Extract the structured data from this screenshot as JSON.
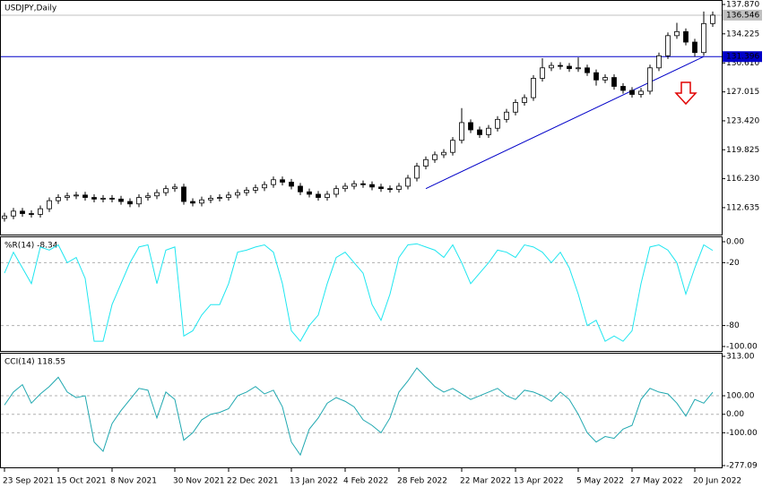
{
  "chart_data": [
    {
      "type": "candlestick",
      "title": "USDJPY,Daily",
      "categories": [
        "23 Sep 2021",
        null,
        null,
        null,
        null,
        null,
        "15 Oct 2021",
        null,
        null,
        null,
        null,
        null,
        "8 Nov 2021",
        null,
        null,
        null,
        null,
        null,
        null,
        "30 Nov 2021",
        null,
        null,
        null,
        null,
        null,
        "22 Dec 2021",
        null,
        null,
        null,
        null,
        null,
        null,
        "13 Jan 2022",
        null,
        null,
        null,
        null,
        null,
        "4 Feb 2022",
        null,
        null,
        null,
        null,
        null,
        "28 Feb 2022",
        null,
        null,
        null,
        null,
        null,
        null,
        "22 Mar 2022",
        null,
        null,
        null,
        null,
        null,
        "13 Apr 2022",
        null,
        null,
        null,
        null,
        null,
        null,
        "5 May 2022",
        null,
        null,
        null,
        null,
        null,
        "27 May 2022",
        null,
        null,
        null,
        null,
        null,
        null,
        "20 Jun 2022",
        null,
        null
      ],
      "open": [
        111.3,
        111.6,
        112.2,
        111.9,
        111.8,
        112.5,
        113.5,
        113.9,
        114.1,
        114.2,
        113.9,
        113.7,
        113.8,
        113.7,
        113.4,
        113.1,
        113.9,
        114.1,
        114.5,
        115.0,
        115.2,
        113.4,
        113.2,
        113.6,
        113.8,
        113.9,
        114.2,
        114.5,
        114.8,
        115.1,
        115.5,
        116.1,
        115.8,
        115.3,
        114.6,
        114.3,
        113.9,
        114.3,
        115.0,
        115.3,
        115.6,
        115.5,
        115.2,
        115.0,
        114.9,
        115.3,
        116.3,
        117.8,
        118.6,
        119.2,
        119.5,
        121.0,
        123.2,
        122.3,
        121.7,
        122.5,
        123.6,
        124.5,
        125.7,
        126.3,
        128.7,
        130.0,
        130.3,
        130.2,
        129.9,
        130.0,
        129.4,
        128.5,
        128.8,
        127.7,
        127.2,
        126.7,
        127.1,
        130.0,
        131.5,
        134.0,
        134.5,
        133.2,
        131.9,
        135.5
      ],
      "high": [
        112.0,
        112.6,
        112.6,
        112.3,
        112.9,
        113.9,
        114.3,
        114.5,
        114.6,
        114.6,
        114.3,
        114.2,
        114.2,
        114.1,
        113.8,
        114.3,
        114.5,
        114.9,
        115.4,
        115.6,
        115.6,
        113.8,
        114.0,
        114.2,
        114.3,
        114.6,
        114.9,
        115.2,
        115.5,
        115.9,
        116.5,
        116.5,
        116.2,
        115.7,
        115.0,
        114.7,
        114.7,
        115.4,
        115.7,
        116.0,
        116.0,
        115.9,
        115.6,
        115.4,
        115.7,
        116.7,
        118.2,
        119.0,
        119.6,
        119.9,
        121.4,
        125.0,
        123.6,
        122.7,
        122.9,
        124.0,
        124.9,
        126.1,
        126.7,
        129.1,
        131.2,
        130.7,
        130.7,
        130.6,
        131.3,
        130.4,
        129.8,
        129.2,
        129.2,
        128.1,
        127.6,
        127.5,
        130.4,
        131.9,
        134.4,
        135.6,
        134.9,
        133.6,
        137.0,
        137.0
      ],
      "low": [
        110.9,
        111.2,
        111.5,
        111.4,
        111.4,
        112.1,
        113.1,
        113.5,
        113.7,
        113.5,
        113.3,
        113.3,
        113.3,
        113.0,
        112.7,
        112.7,
        113.5,
        113.7,
        114.1,
        114.6,
        113.0,
        112.8,
        112.8,
        113.2,
        113.4,
        113.5,
        113.8,
        114.1,
        114.4,
        114.7,
        115.1,
        115.4,
        114.9,
        114.2,
        113.9,
        113.5,
        113.5,
        113.9,
        114.6,
        114.9,
        115.1,
        114.8,
        114.6,
        114.5,
        114.5,
        114.9,
        115.9,
        117.4,
        118.2,
        118.8,
        119.1,
        120.6,
        121.9,
        121.3,
        121.3,
        122.1,
        123.2,
        124.1,
        125.3,
        125.9,
        128.3,
        129.6,
        129.8,
        129.5,
        129.5,
        129.0,
        127.8,
        128.1,
        127.3,
        126.8,
        126.3,
        126.3,
        126.7,
        129.6,
        131.1,
        133.6,
        132.8,
        131.4,
        131.5,
        135.1
      ],
      "close": [
        111.6,
        112.2,
        111.9,
        111.8,
        112.5,
        113.5,
        113.9,
        114.1,
        114.2,
        113.9,
        113.7,
        113.8,
        113.7,
        113.4,
        113.1,
        113.9,
        114.1,
        114.5,
        115.0,
        115.2,
        113.4,
        113.2,
        113.6,
        113.8,
        113.9,
        114.2,
        114.5,
        114.8,
        115.1,
        115.5,
        116.1,
        115.8,
        115.3,
        114.6,
        114.3,
        113.9,
        114.3,
        115.0,
        115.3,
        115.6,
        115.5,
        115.2,
        115.0,
        114.9,
        115.3,
        116.3,
        117.8,
        118.6,
        119.2,
        119.5,
        121.0,
        123.2,
        122.3,
        121.7,
        122.5,
        123.6,
        124.5,
        125.7,
        126.3,
        128.7,
        130.0,
        130.3,
        130.2,
        129.9,
        130.0,
        129.4,
        128.5,
        128.8,
        127.7,
        127.2,
        126.7,
        127.1,
        130.0,
        131.5,
        134.0,
        134.5,
        133.2,
        131.9,
        135.5,
        136.546
      ],
      "up_color": "#ffffff",
      "down_color": "#000000",
      "ylim": [
        109.29,
        138.43
      ],
      "yticks": [
        {
          "value": 137.87,
          "label": "137.870"
        },
        {
          "value": 134.225,
          "label": "134.225"
        },
        {
          "value": 130.61,
          "label": "130.610"
        },
        {
          "value": 127.015,
          "label": "127.015"
        },
        {
          "value": 123.42,
          "label": "123.420"
        },
        {
          "value": 119.825,
          "label": "119.825"
        },
        {
          "value": 116.23,
          "label": "116.230"
        },
        {
          "value": 112.635,
          "label": "112.635"
        }
      ],
      "price_lines": [
        {
          "value": 136.546,
          "color": "#c0c0c0"
        },
        {
          "value": 131.396,
          "color": "#0000c8"
        }
      ],
      "trendline": {
        "x": [
          47,
          78
        ],
        "y": [
          115.0,
          131.4
        ],
        "color": "#0000c8"
      }
    },
    {
      "type": "line",
      "title": "%R(14) -8.34",
      "values": [
        -30,
        -10,
        -25,
        -40,
        -5,
        -8,
        -3,
        -20,
        -15,
        -35,
        -95,
        -95,
        -60,
        -40,
        -20,
        -5,
        -3,
        -40,
        -8,
        -5,
        -90,
        -85,
        -70,
        -60,
        -60,
        -40,
        -10,
        -8,
        -5,
        -3,
        -10,
        -40,
        -85,
        -95,
        -80,
        -70,
        -40,
        -15,
        -10,
        -20,
        -30,
        -60,
        -75,
        -50,
        -15,
        -3,
        -2,
        -5,
        -8,
        -15,
        -3,
        -20,
        -40,
        -30,
        -20,
        -8,
        -10,
        -15,
        -3,
        -5,
        -10,
        -20,
        -10,
        -25,
        -50,
        -80,
        -75,
        -95,
        -90,
        -95,
        -85,
        -40,
        -5,
        -3,
        -8,
        -20,
        -50,
        -25,
        -3,
        -8.34
      ],
      "color": "#1ee6f0",
      "ylim": [
        -100,
        0
      ],
      "yticks": [
        {
          "value": 0,
          "label": "0.00"
        },
        -20,
        -80,
        {
          "value": -100,
          "label": "-100.00"
        }
      ],
      "levels": [
        -20,
        -80
      ]
    },
    {
      "type": "line",
      "title": "CCI(14) 118.55",
      "values": [
        50,
        120,
        160,
        60,
        110,
        150,
        200,
        120,
        90,
        100,
        -150,
        -200,
        -50,
        20,
        80,
        140,
        130,
        -20,
        120,
        80,
        -140,
        -100,
        -30,
        0,
        10,
        30,
        100,
        120,
        150,
        110,
        130,
        40,
        -150,
        -220,
        -80,
        -20,
        60,
        90,
        70,
        40,
        -30,
        -60,
        -100,
        -20,
        120,
        180,
        250,
        200,
        150,
        120,
        140,
        110,
        80,
        100,
        120,
        140,
        100,
        80,
        130,
        120,
        100,
        70,
        120,
        80,
        0,
        -100,
        -150,
        -120,
        -130,
        -80,
        -60,
        80,
        140,
        120,
        110,
        60,
        -10,
        80,
        60,
        118.55
      ],
      "color": "#20a8b0",
      "ylim": [
        -277.09,
        313
      ],
      "yticks": [
        {
          "value": 313,
          "label": "313.00"
        },
        {
          "value": 100,
          "label": "100.00"
        },
        {
          "value": 0,
          "label": "0.00"
        },
        {
          "value": -100,
          "label": "-100.00"
        },
        {
          "value": -277.09,
          "label": "-277.09"
        }
      ],
      "levels": [
        100,
        0,
        -100
      ]
    }
  ]
}
